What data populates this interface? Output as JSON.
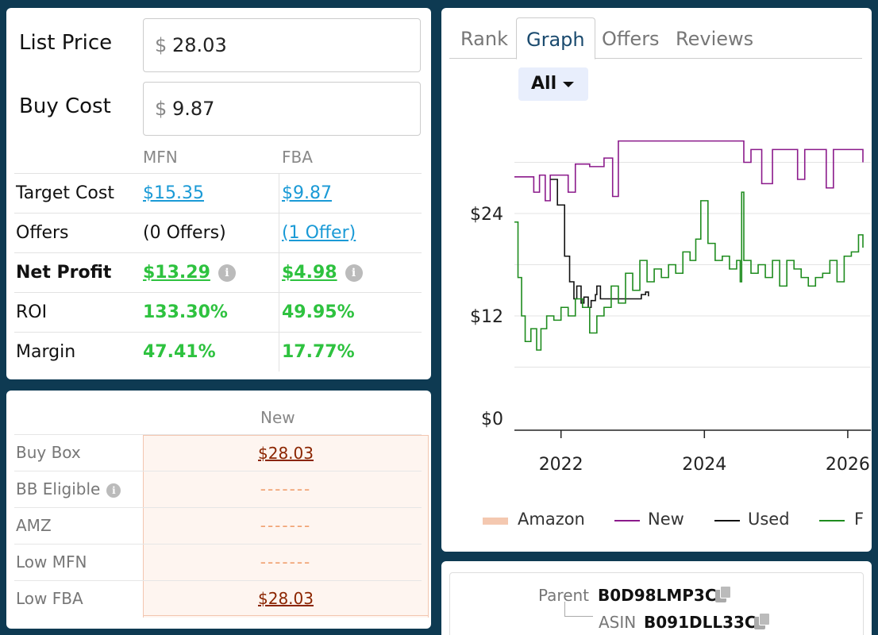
{
  "calculator": {
    "list_price_label": "List Price",
    "list_price_value": "28.03",
    "buy_cost_label": "Buy Cost",
    "buy_cost_value": "9.87",
    "currency_symbol": "$",
    "col_mfn": "MFN",
    "col_fba": "FBA",
    "rows": [
      {
        "label": "Target Cost",
        "mfn": "$15.35",
        "fba": "$9.87"
      },
      {
        "label": "Offers",
        "mfn": "(0 Offers)",
        "fba": "(1 Offer)"
      },
      {
        "label": "Net Profit",
        "mfn": "$13.29",
        "fba": "$4.98"
      },
      {
        "label": "ROI",
        "mfn": "133.30%",
        "fba": "49.95%"
      },
      {
        "label": "Margin",
        "mfn": "47.41%",
        "fba": "17.77%"
      }
    ]
  },
  "offers_table": {
    "column_header": "New",
    "rows": [
      {
        "label": "Buy Box",
        "value": "$28.03"
      },
      {
        "label": "BB Eligible",
        "value": "-------"
      },
      {
        "label": "AMZ",
        "value": "-------"
      },
      {
        "label": "Low MFN",
        "value": "-------"
      },
      {
        "label": "Low FBA",
        "value": "$28.03"
      }
    ]
  },
  "graph_panel": {
    "tabs": [
      "Rank",
      "Graph",
      "Offers",
      "Reviews"
    ],
    "active_tab": "Graph",
    "range_button": "All"
  },
  "chart_data": {
    "type": "line",
    "y_ticks": [
      "$24",
      "$12",
      "$0"
    ],
    "x_ticks": [
      "2022",
      "2024",
      "2026"
    ],
    "ylim": [
      0,
      30
    ],
    "xlim": [
      2021.35,
      2026.3
    ],
    "grid": true,
    "legend_position": "bottom",
    "series": [
      {
        "name": "Amazon",
        "color": "#f4b08a",
        "points": []
      },
      {
        "name": "New",
        "color": "#8b1a8b",
        "points": [
          [
            2021.35,
            28.3
          ],
          [
            2021.55,
            28.3
          ],
          [
            2021.62,
            26.5
          ],
          [
            2021.7,
            28.5
          ],
          [
            2021.78,
            25.5
          ],
          [
            2021.85,
            28.5
          ],
          [
            2022.0,
            28.5
          ],
          [
            2022.1,
            26.5
          ],
          [
            2022.2,
            29.8
          ],
          [
            2022.4,
            29.5
          ],
          [
            2022.6,
            30.5
          ],
          [
            2022.72,
            26.0
          ],
          [
            2022.8,
            32.5
          ],
          [
            2023.0,
            32.5
          ],
          [
            2024.0,
            32.5
          ],
          [
            2024.5,
            32.5
          ],
          [
            2024.55,
            30.0
          ],
          [
            2024.65,
            31.5
          ],
          [
            2024.8,
            27.5
          ],
          [
            2024.95,
            31.5
          ],
          [
            2025.2,
            31.5
          ],
          [
            2025.3,
            28.0
          ],
          [
            2025.4,
            31.5
          ],
          [
            2025.6,
            31.5
          ],
          [
            2025.7,
            27.0
          ],
          [
            2025.8,
            31.5
          ],
          [
            2026.25,
            31.5
          ],
          [
            2026.3,
            30.0
          ]
        ]
      },
      {
        "name": "Used",
        "color": "#111111",
        "points": [
          [
            2021.85,
            28.0
          ],
          [
            2021.95,
            25.0
          ],
          [
            2022.05,
            19.0
          ],
          [
            2022.12,
            16.0
          ],
          [
            2022.18,
            14.0
          ],
          [
            2022.22,
            15.5
          ],
          [
            2022.28,
            13.5
          ],
          [
            2022.32,
            14.2
          ],
          [
            2022.38,
            13.0
          ],
          [
            2022.42,
            13.8
          ],
          [
            2022.48,
            14.5
          ],
          [
            2022.5,
            15.5
          ],
          [
            2022.55,
            14.0
          ],
          [
            2023.12,
            14.5
          ],
          [
            2023.18,
            14.8
          ],
          [
            2023.22,
            14.3
          ]
        ]
      },
      {
        "name": "FBA",
        "color": "#1e8c1e",
        "points": [
          [
            2021.35,
            23.0
          ],
          [
            2021.4,
            16.5
          ],
          [
            2021.45,
            12.0
          ],
          [
            2021.5,
            9.0
          ],
          [
            2021.58,
            10.5
          ],
          [
            2021.66,
            8.0
          ],
          [
            2021.72,
            10.5
          ],
          [
            2021.8,
            12.0
          ],
          [
            2021.9,
            11.5
          ],
          [
            2022.0,
            13.0
          ],
          [
            2022.1,
            12.0
          ],
          [
            2022.2,
            14.0
          ],
          [
            2022.3,
            13.0
          ],
          [
            2022.4,
            10.0
          ],
          [
            2022.5,
            12.0
          ],
          [
            2022.6,
            13.0
          ],
          [
            2022.7,
            15.5
          ],
          [
            2022.8,
            13.5
          ],
          [
            2022.9,
            17.0
          ],
          [
            2023.0,
            15.0
          ],
          [
            2023.1,
            18.5
          ],
          [
            2023.2,
            16.0
          ],
          [
            2023.3,
            17.5
          ],
          [
            2023.4,
            16.5
          ],
          [
            2023.5,
            18.0
          ],
          [
            2023.6,
            17.0
          ],
          [
            2023.7,
            19.5
          ],
          [
            2023.8,
            18.5
          ],
          [
            2023.88,
            21.0
          ],
          [
            2023.95,
            25.5
          ],
          [
            2024.05,
            20.5
          ],
          [
            2024.15,
            18.5
          ],
          [
            2024.25,
            19.0
          ],
          [
            2024.35,
            17.5
          ],
          [
            2024.45,
            18.5
          ],
          [
            2024.5,
            16.0
          ],
          [
            2024.52,
            26.5
          ],
          [
            2024.55,
            18.5
          ],
          [
            2024.65,
            17.0
          ],
          [
            2024.75,
            18.0
          ],
          [
            2024.85,
            16.5
          ],
          [
            2024.95,
            18.5
          ],
          [
            2025.05,
            15.5
          ],
          [
            2025.15,
            18.5
          ],
          [
            2025.25,
            17.5
          ],
          [
            2025.35,
            16.5
          ],
          [
            2025.45,
            15.5
          ],
          [
            2025.55,
            16.5
          ],
          [
            2025.65,
            17.0
          ],
          [
            2025.75,
            18.5
          ],
          [
            2025.85,
            16.0
          ],
          [
            2025.95,
            19.0
          ],
          [
            2026.05,
            19.5
          ],
          [
            2026.15,
            21.5
          ],
          [
            2026.25,
            21.0
          ],
          [
            2026.3,
            20.0
          ]
        ]
      }
    ]
  },
  "parent_asin": {
    "parent_label": "Parent",
    "parent_value": "B0D98LMP3C",
    "asin_label": "ASIN",
    "asin_value": "B091DLL33C"
  }
}
